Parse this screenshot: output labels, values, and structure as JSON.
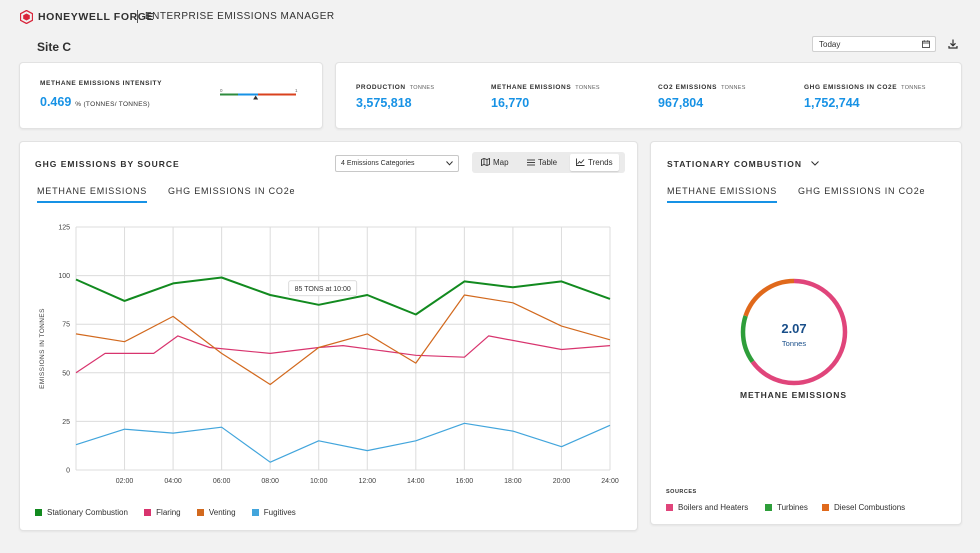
{
  "header": {
    "brand": "HONEYWELL FORGE",
    "app_title": "ENTERPRISE EMISSIONS MANAGER"
  },
  "site": {
    "title": "Site C"
  },
  "date_filter": {
    "value": "Today",
    "icon": "calendar-icon"
  },
  "intensity": {
    "label": "METHANE EMISSIONS INTENSITY",
    "value": "0.469",
    "unit": "% (TONNES/ TONNES)",
    "gauge_min": "0",
    "gauge_max": "1",
    "gauge_level": 0.469,
    "colors": {
      "low": "#2e8b3e",
      "mid": "#1792e5",
      "high": "#d9411e"
    }
  },
  "kpis": [
    {
      "label": "PRODUCTION",
      "unit": "TONNES",
      "value": "3,575,818"
    },
    {
      "label": "METHANE EMISSIONS",
      "unit": "TONNES",
      "value": "16,770"
    },
    {
      "label": "CO2 EMISSIONS",
      "unit": "TONNES",
      "value": "967,804"
    },
    {
      "label": "GHG EMISSIONS IN CO2E",
      "unit": "TONNES",
      "value": "1,752,744"
    }
  ],
  "ghg_panel": {
    "title": "GHG EMISSIONS BY SOURCE",
    "category_select": "4 Emissions Categories",
    "views": [
      "Map",
      "Table",
      "Trends"
    ],
    "active_view": "Trends",
    "tabs": [
      "METHANE EMISSIONS",
      "GHG EMISSIONS IN CO2e"
    ],
    "tooltip": "85 TONS at 10:00"
  },
  "chart_data": {
    "type": "line",
    "ylabel": "EMISSIONS IN TONNES",
    "xlabel": "",
    "ylim": [
      0,
      125
    ],
    "yticks": [
      "0",
      "25",
      "50",
      "75",
      "100",
      "125"
    ],
    "x": [
      "00:00",
      "01:00",
      "02:00",
      "03:00",
      "04:00",
      "05:00",
      "06:00",
      "07:00",
      "08:00",
      "09:00",
      "10:00",
      "11:00",
      "12:00",
      "13:00",
      "14:00",
      "15:00",
      "16:00",
      "17:00",
      "18:00",
      "19:00",
      "20:00",
      "21:00",
      "22:00"
    ],
    "xtick_labels": [
      "02:00",
      "04:00",
      "06:00",
      "08:00",
      "10:00",
      "12:00",
      "14:00",
      "16:00",
      "18:00",
      "20:00",
      "24:00"
    ],
    "grid": true,
    "legend_position": "bottom",
    "series": [
      {
        "name": "Stationary Combustion",
        "color": "#128a1f",
        "x": [
          0,
          2,
          4,
          6,
          8,
          10,
          12,
          14,
          16,
          18,
          20,
          22
        ],
        "values": [
          98,
          87,
          96,
          99,
          90,
          85,
          90,
          80,
          97,
          94,
          97,
          88
        ]
      },
      {
        "name": "Flaring",
        "color": "#d8346e",
        "x": [
          0,
          1.2,
          3.2,
          4.2,
          5.5,
          8,
          10,
          11,
          14,
          16,
          17,
          20,
          22
        ],
        "values": [
          50,
          60,
          60,
          69,
          63,
          60,
          63,
          64,
          59,
          58,
          69,
          62,
          64
        ]
      },
      {
        "name": "Venting",
        "color": "#d2691e",
        "x": [
          0,
          2,
          4,
          6,
          8,
          10,
          12,
          14,
          16,
          18,
          20,
          22
        ],
        "values": [
          70,
          66,
          79,
          60,
          44,
          63,
          70,
          55,
          90,
          86,
          74,
          67
        ]
      },
      {
        "name": "Fugitives",
        "color": "#42a5dc",
        "x": [
          0,
          2,
          4,
          6,
          8,
          10,
          12,
          14,
          16,
          18,
          20,
          22
        ],
        "values": [
          13,
          21,
          19,
          22,
          4,
          15,
          10,
          15,
          24,
          20,
          12,
          23
        ]
      }
    ]
  },
  "stationary_panel": {
    "title": "STATIONARY COMBUSTION",
    "tabs": [
      "METHANE EMISSIONS",
      "GHG EMISSIONS IN CO2e"
    ],
    "donut_value": "2.07",
    "donut_unit": "Tonnes",
    "donut_caption": "METHANE EMISSIONS",
    "sources_title": "SOURCES",
    "sources": [
      {
        "name": "Boilers and Heaters",
        "color": "#e0457b",
        "share": 0.65
      },
      {
        "name": "Turbines",
        "color": "#2e9e3a",
        "share": 0.15
      },
      {
        "name": "Diesel Combustions",
        "color": "#e0691b",
        "share": 0.2
      }
    ]
  }
}
